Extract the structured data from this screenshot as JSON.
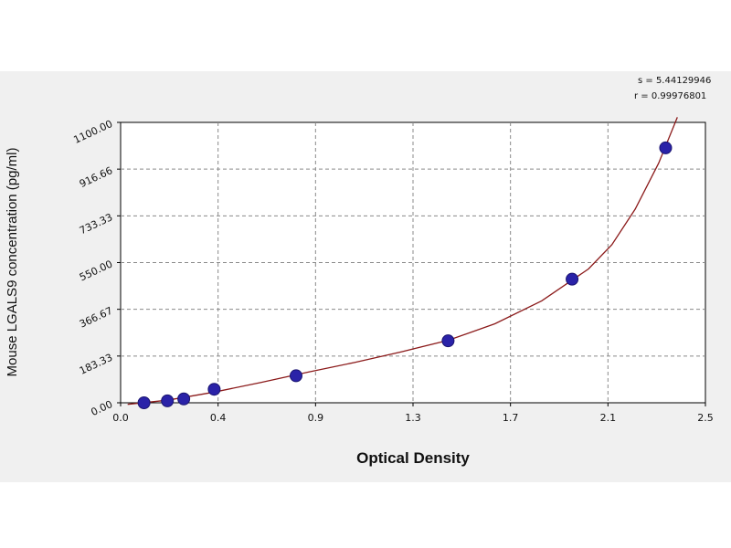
{
  "chart_data": {
    "type": "scatter",
    "xlabel": "Optical Density",
    "ylabel": "Mouse LGALS9 concentration (pg/ml)",
    "x_ticks": [
      "0.0",
      "0.4",
      "0.9",
      "1.3",
      "1.7",
      "2.1",
      "2.5"
    ],
    "y_ticks": [
      "0.00",
      "183.33",
      "366.67",
      "550.00",
      "733.33",
      "916.66",
      "1100.00"
    ],
    "xlim": [
      0,
      2.5
    ],
    "ylim": [
      0,
      1100
    ],
    "grid": true,
    "stats": [
      "s = 5.44129946",
      "r = 0.99976801"
    ],
    "points": {
      "x": [
        0.1,
        0.2,
        0.27,
        0.4,
        0.75,
        1.4,
        1.93,
        2.33
      ],
      "y": [
        0,
        7.6,
        15.2,
        53,
        106,
        243,
        485,
        1000
      ]
    },
    "fit_curve": {
      "x": [
        0.03,
        0.2,
        0.4,
        0.6,
        0.8,
        1.0,
        1.2,
        1.4,
        1.6,
        1.8,
        2.0,
        2.1,
        2.2,
        2.3,
        2.38
      ],
      "y": [
        -6,
        10,
        42,
        80,
        120,
        158,
        200,
        245,
        310,
        400,
        525,
        620,
        760,
        940,
        1120
      ]
    },
    "colors": {
      "point": "#2a22a8",
      "curve": "#8b1a1a",
      "grid": "#8a8a8a"
    }
  }
}
